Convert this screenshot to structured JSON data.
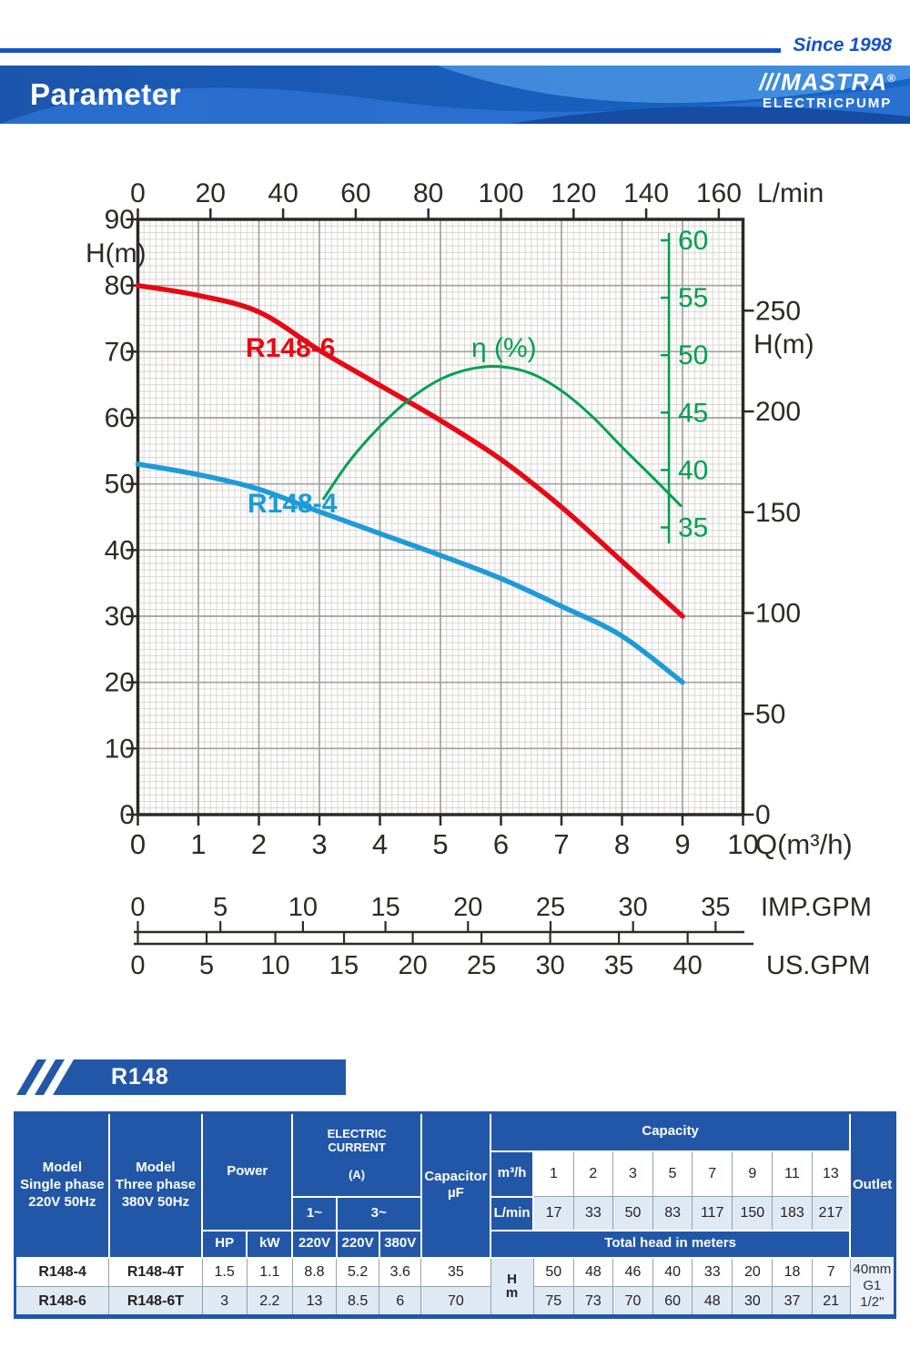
{
  "header": {
    "since": "Since 1998",
    "title": "Parameter",
    "brand_slashes": "///",
    "brand": "MASTRA",
    "registered": "®",
    "brand_sub": "ELECTRICPUMP"
  },
  "section": {
    "series_label": "R148"
  },
  "chart_data": {
    "type": "line",
    "x_bottom": {
      "label": "Q(m³/h)",
      "min": 0,
      "max": 10,
      "ticks": [
        0,
        1,
        2,
        3,
        4,
        5,
        6,
        7,
        8,
        9,
        10
      ]
    },
    "x_top": {
      "label": "L/min",
      "ticks": [
        0,
        20,
        40,
        60,
        80,
        100,
        120,
        140,
        160
      ]
    },
    "y_left": {
      "label": "H(m)",
      "min": 0,
      "max": 90,
      "ticks": [
        0,
        10,
        20,
        30,
        40,
        50,
        60,
        70,
        80,
        90
      ]
    },
    "y_right": {
      "label": "H(m)",
      "ticks": [
        0,
        50,
        100,
        150,
        200,
        250
      ]
    },
    "y_eta": {
      "label": "η (%)",
      "min": 35,
      "max": 60,
      "ticks": [
        35,
        40,
        45,
        50,
        55,
        60
      ],
      "color": "#00a14e"
    },
    "x_imp": {
      "label": "IMP.GPM",
      "ticks": [
        0,
        5,
        10,
        15,
        20,
        25,
        30,
        35
      ]
    },
    "x_us": {
      "label": "US.GPM",
      "ticks": [
        0,
        5,
        10,
        15,
        20,
        25,
        30,
        35,
        40
      ]
    },
    "grid": "on",
    "series": [
      {
        "name": "R148-6",
        "color": "#e60914",
        "unit": "H(m)",
        "points": [
          [
            0,
            80
          ],
          [
            1,
            78.5
          ],
          [
            2,
            76
          ],
          [
            3,
            70.2
          ],
          [
            4,
            64.9
          ],
          [
            5,
            59.6
          ],
          [
            6,
            53.7
          ],
          [
            7,
            46.5
          ],
          [
            8,
            38.3
          ],
          [
            9,
            30
          ]
        ]
      },
      {
        "name": "R148-4",
        "color": "#1d9bd7",
        "unit": "H(m)",
        "points": [
          [
            0,
            53
          ],
          [
            1,
            51.4
          ],
          [
            2,
            49.2
          ],
          [
            3,
            45.8
          ],
          [
            4,
            42.5
          ],
          [
            5,
            39.2
          ],
          [
            6,
            35.7
          ],
          [
            7,
            31.5
          ],
          [
            8,
            27
          ],
          [
            9,
            20
          ]
        ]
      },
      {
        "name": "η (%)",
        "color": "#00a14e",
        "unit": "%",
        "points": [
          [
            3.07,
            37.5
          ],
          [
            3.5,
            40.8
          ],
          [
            4,
            43.8
          ],
          [
            4.5,
            46.2
          ],
          [
            5,
            47.9
          ],
          [
            5.5,
            48.8
          ],
          [
            6,
            49
          ],
          [
            6.5,
            48.4
          ],
          [
            7,
            46.9
          ],
          [
            7.5,
            44.7
          ],
          [
            8,
            42
          ],
          [
            8.5,
            39.4
          ],
          [
            8.97,
            36.9
          ]
        ]
      }
    ]
  },
  "table": {
    "headers": {
      "model1": "Model\nSingle phase\n220V 50Hz",
      "model2": "Model\nThree phase\n380V 50Hz",
      "power": "Power",
      "electric_current": "ELECTRIC CURRENT",
      "electric_current_unit": "(A)",
      "capacitor": "Capacitor\nµF",
      "capacity": "Capacity",
      "outlet": "Outlet",
      "phase1": "1~",
      "phase3": "3~",
      "hp": "HP",
      "kw": "kW",
      "v220": "220V",
      "v380": "380V",
      "m3h": "m³/h",
      "lmin": "L/min",
      "total_head": "Total head in meters",
      "hm": "H\nm"
    },
    "capacity": {
      "m3h": [
        "1",
        "2",
        "3",
        "5",
        "7",
        "9",
        "11",
        "13"
      ],
      "lmin": [
        "17",
        "33",
        "50",
        "83",
        "117",
        "150",
        "183",
        "217"
      ]
    },
    "rows": [
      {
        "model1": "R148-4",
        "model2": "R148-4T",
        "hp": "1.5",
        "kw": "1.1",
        "a220_1": "8.8",
        "a220_3": "5.2",
        "a380": "3.6",
        "cap": "35",
        "heads": [
          "50",
          "48",
          "46",
          "40",
          "33",
          "20",
          "18",
          "7"
        ]
      },
      {
        "model1": "R148-6",
        "model2": "R148-6T",
        "hp": "3",
        "kw": "2.2",
        "a220_1": "13",
        "a220_3": "8.5",
        "a380": "6",
        "cap": "70",
        "heads": [
          "75",
          "73",
          "70",
          "60",
          "48",
          "30",
          "37",
          "21"
        ]
      }
    ],
    "outlet_value": "40mm\nG1 1/2\""
  }
}
